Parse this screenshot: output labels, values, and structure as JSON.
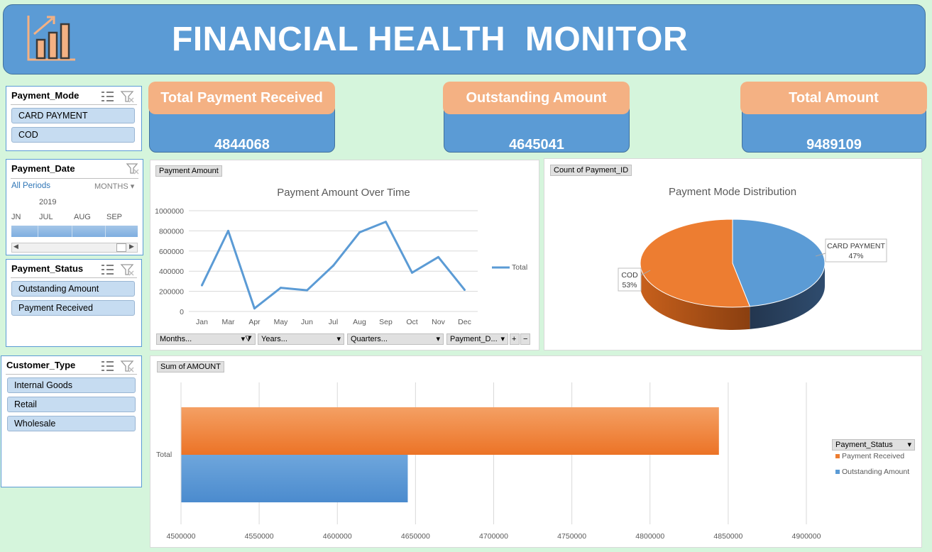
{
  "header": {
    "title": "FINANCIAL HEALTH  MONITOR",
    "logo_icon": "bar-chart-growth-icon",
    "bg_color": "#5b9bd5"
  },
  "slicers": {
    "payment_mode": {
      "title": "Payment_Mode",
      "items": [
        "CARD PAYMENT",
        "COD"
      ]
    },
    "payment_date": {
      "title": "Payment_Date",
      "all_periods": "All Periods",
      "level": "MONTHS",
      "year": "2019",
      "months": [
        "JN",
        "JUL",
        "AUG",
        "SEP"
      ]
    },
    "payment_status": {
      "title": "Payment_Status",
      "items": [
        "Outstanding Amount",
        "Payment Received"
      ]
    },
    "customer_type": {
      "title": "Customer_Type",
      "items": [
        "Internal Goods",
        "Retail",
        "Wholesale"
      ]
    }
  },
  "kpis": [
    {
      "label": "Total Payment Received",
      "value": "4844068"
    },
    {
      "label": "Outstanding Amount",
      "value": "4645041"
    },
    {
      "label": "Total Amount",
      "value": "9489109"
    }
  ],
  "chart_data": [
    {
      "type": "line",
      "field_button": "Payment Amount",
      "title": "Payment Amount Over Time",
      "categories": [
        "Jan",
        "Mar",
        "Apr",
        "May",
        "Jun",
        "Jul",
        "Aug",
        "Sep",
        "Oct",
        "Nov",
        "Dec"
      ],
      "series": [
        {
          "name": "Total",
          "values": [
            260000,
            800000,
            30000,
            235000,
            210000,
            455000,
            785000,
            890000,
            385000,
            540000,
            215000
          ]
        }
      ],
      "yticks": [
        "0",
        "200000",
        "400000",
        "600000",
        "800000",
        "1000000"
      ],
      "ylim": [
        0,
        1000000
      ],
      "grid": true,
      "legend": "right",
      "color": "#5b9bd5",
      "filter_buttons": [
        "Months...",
        "Years...",
        "Quarters...",
        "Payment_D..."
      ]
    },
    {
      "type": "pie",
      "field_button": "Count of Payment_ID",
      "title": "Payment Mode Distribution",
      "slices": [
        {
          "name": "CARD PAYMENT",
          "value": 47,
          "label": "47%",
          "color": "#5b9bd5"
        },
        {
          "name": "COD",
          "value": 53,
          "label": "53%",
          "color": "#ed7d31"
        }
      ]
    },
    {
      "type": "bar",
      "orientation": "horizontal",
      "field_button": "Sum of AMOUNT",
      "categories": [
        "Total"
      ],
      "series": [
        {
          "name": "Payment Received",
          "values": [
            4844068
          ],
          "color": "#ed7d31"
        },
        {
          "name": "Outstanding Amount",
          "values": [
            4645041
          ],
          "color": "#5b9bd5"
        }
      ],
      "xlim": [
        4500000,
        4900000
      ],
      "xticks": [
        "4500000",
        "4550000",
        "4600000",
        "4650000",
        "4700000",
        "4750000",
        "4800000",
        "4850000",
        "4900000"
      ],
      "legend_title": "Payment_Status",
      "legend": "right",
      "grid": true
    }
  ]
}
